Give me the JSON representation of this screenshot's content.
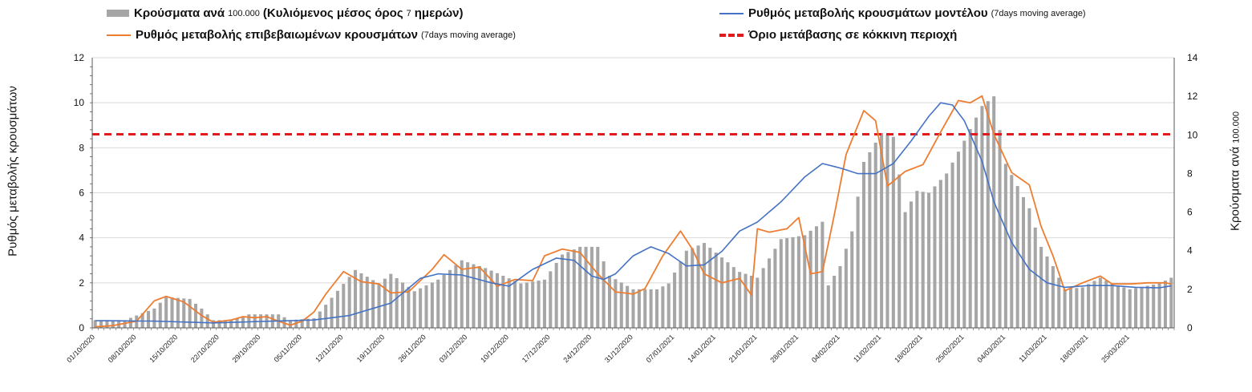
{
  "chart_data": {
    "type": "bar+line",
    "legend": {
      "bars": {
        "label": "Κρούσματα ανά",
        "note1": "100.000",
        "label2": "(Κυλιόμενος μέσος όρος",
        "note2": "7",
        "label3": "ημερών)"
      },
      "model": {
        "label": "Ρυθμός μεταβολής κρουσμάτων μοντέλου",
        "note": "(7days moving average)"
      },
      "confirmed": {
        "label": "Ρυθμός μεταβολής επιβεβαιωμένων κρουσμάτων",
        "note": "(7days moving average)"
      },
      "threshold": {
        "label": "Όριο μετάβασης σε κόκκινη περιοχή"
      }
    },
    "y_left": {
      "label": "Ρυθμός μεταβολής κρουσμάτων",
      "min": 0,
      "max": 12,
      "ticks": [
        0,
        2,
        4,
        6,
        8,
        10,
        12
      ]
    },
    "y_right": {
      "label": "Κρούσματα ανά",
      "label_note": "100.000",
      "min": 0,
      "max": 14,
      "ticks": [
        0,
        2,
        4,
        6,
        8,
        10,
        12,
        14
      ]
    },
    "x_tick_labels": [
      "01/10/2020",
      "08/10/2020",
      "15/10/2020",
      "22/10/2020",
      "29/10/2020",
      "05/11/2020",
      "12/11/2020",
      "19/11/2020",
      "26/11/2020",
      "03/12/2020",
      "10/12/2020",
      "17/12/2020",
      "24/12/2020",
      "31/12/2020",
      "07/01/2021",
      "14/01/2021",
      "21/01/2021",
      "28/01/2021",
      "04/02/2021",
      "11/02/2021",
      "18/02/2021",
      "25/02/2021",
      "04/03/2021",
      "11/03/2021",
      "18/03/2021",
      "25/03/2021"
    ],
    "n_days": 183,
    "threshold_value": 8.6,
    "colors": {
      "bars": "#a6a6a6",
      "model": "#4472c4",
      "confirmed": "#ed7d31",
      "threshold": "#e31a1c",
      "grid": "#d9d9d9"
    },
    "bars_keypoints": [
      [
        0,
        0.4
      ],
      [
        5,
        0.4
      ],
      [
        10,
        1.0
      ],
      [
        12,
        1.6
      ],
      [
        16,
        1.5
      ],
      [
        18,
        1.0
      ],
      [
        20,
        0.4
      ],
      [
        23,
        0.4
      ],
      [
        26,
        0.7
      ],
      [
        31,
        0.7
      ],
      [
        33,
        0.4
      ],
      [
        37,
        0.5
      ],
      [
        39,
        1.2
      ],
      [
        44,
        3.0
      ],
      [
        48,
        2.3
      ],
      [
        50,
        2.8
      ],
      [
        54,
        1.9
      ],
      [
        58,
        2.5
      ],
      [
        62,
        3.5
      ],
      [
        66,
        3.1
      ],
      [
        72,
        2.3
      ],
      [
        76,
        2.5
      ],
      [
        79,
        3.8
      ],
      [
        82,
        4.2
      ],
      [
        85,
        4.2
      ],
      [
        87,
        2.7
      ],
      [
        91,
        2.0
      ],
      [
        95,
        2.0
      ],
      [
        97,
        2.3
      ],
      [
        100,
        4.0
      ],
      [
        103,
        4.4
      ],
      [
        105,
        3.9
      ],
      [
        109,
        2.9
      ],
      [
        112,
        2.6
      ],
      [
        116,
        4.6
      ],
      [
        120,
        4.8
      ],
      [
        123,
        5.5
      ],
      [
        124,
        2.2
      ],
      [
        126,
        3.2
      ],
      [
        128,
        5.0
      ],
      [
        130,
        8.6
      ],
      [
        133,
        10.1
      ],
      [
        135,
        9.9
      ],
      [
        137,
        6.0
      ],
      [
        139,
        7.1
      ],
      [
        141,
        7.0
      ],
      [
        144,
        8.0
      ],
      [
        147,
        9.7
      ],
      [
        150,
        11.5
      ],
      [
        152,
        12.0
      ],
      [
        154,
        8.5
      ],
      [
        158,
        6.2
      ],
      [
        160,
        4.2
      ],
      [
        162,
        3.2
      ],
      [
        164,
        2.0
      ],
      [
        167,
        2.1
      ],
      [
        170,
        2.6
      ],
      [
        172,
        2.3
      ],
      [
        175,
        2.0
      ],
      [
        180,
        2.3
      ],
      [
        182,
        2.6
      ]
    ],
    "model_keypoints": [
      [
        0,
        0.32
      ],
      [
        10,
        0.3
      ],
      [
        20,
        0.22
      ],
      [
        30,
        0.3
      ],
      [
        37,
        0.35
      ],
      [
        43,
        0.55
      ],
      [
        50,
        1.1
      ],
      [
        55,
        2.2
      ],
      [
        58,
        2.4
      ],
      [
        62,
        2.35
      ],
      [
        67,
        2.0
      ],
      [
        70,
        1.85
      ],
      [
        74,
        2.6
      ],
      [
        78,
        3.1
      ],
      [
        81,
        3.0
      ],
      [
        84,
        2.3
      ],
      [
        86,
        2.15
      ],
      [
        88,
        2.4
      ],
      [
        91,
        3.2
      ],
      [
        94,
        3.6
      ],
      [
        97,
        3.3
      ],
      [
        100,
        2.75
      ],
      [
        103,
        2.8
      ],
      [
        106,
        3.4
      ],
      [
        109,
        4.3
      ],
      [
        112,
        4.7
      ],
      [
        116,
        5.6
      ],
      [
        120,
        6.7
      ],
      [
        123,
        7.3
      ],
      [
        126,
        7.1
      ],
      [
        129,
        6.85
      ],
      [
        132,
        6.85
      ],
      [
        135,
        7.3
      ],
      [
        138,
        8.3
      ],
      [
        141,
        9.4
      ],
      [
        143,
        10.0
      ],
      [
        145,
        9.9
      ],
      [
        147,
        9.2
      ],
      [
        150,
        7.4
      ],
      [
        152,
        5.6
      ],
      [
        155,
        3.8
      ],
      [
        158,
        2.6
      ],
      [
        161,
        2.0
      ],
      [
        164,
        1.8
      ],
      [
        168,
        1.88
      ],
      [
        172,
        1.88
      ],
      [
        176,
        1.8
      ],
      [
        180,
        1.78
      ],
      [
        184,
        1.95
      ],
      [
        188,
        2.35
      ],
      [
        192,
        2.7
      ],
      [
        196,
        3.05
      ],
      [
        200,
        3.45
      ],
      [
        204,
        3.95
      ],
      [
        208,
        4.45
      ],
      [
        212,
        4.75
      ]
    ],
    "confirmed_keypoints": [
      [
        0,
        0.05
      ],
      [
        3,
        0.1
      ],
      [
        7,
        0.3
      ],
      [
        10,
        1.2
      ],
      [
        12,
        1.4
      ],
      [
        15,
        1.15
      ],
      [
        18,
        0.55
      ],
      [
        20,
        0.25
      ],
      [
        23,
        0.35
      ],
      [
        25,
        0.5
      ],
      [
        27,
        0.45
      ],
      [
        29,
        0.5
      ],
      [
        31,
        0.3
      ],
      [
        33,
        0.12
      ],
      [
        35,
        0.3
      ],
      [
        37,
        0.7
      ],
      [
        39,
        1.5
      ],
      [
        42,
        2.5
      ],
      [
        45,
        2.05
      ],
      [
        48,
        1.95
      ],
      [
        50,
        1.55
      ],
      [
        53,
        1.6
      ],
      [
        57,
        2.6
      ],
      [
        59,
        3.25
      ],
      [
        62,
        2.6
      ],
      [
        65,
        2.7
      ],
      [
        68,
        1.85
      ],
      [
        71,
        2.15
      ],
      [
        74,
        2.1
      ],
      [
        76,
        3.2
      ],
      [
        79,
        3.5
      ],
      [
        82,
        3.35
      ],
      [
        85,
        2.4
      ],
      [
        88,
        1.6
      ],
      [
        91,
        1.5
      ],
      [
        93,
        1.75
      ],
      [
        96,
        3.2
      ],
      [
        99,
        4.3
      ],
      [
        101,
        3.5
      ],
      [
        103,
        2.4
      ],
      [
        106,
        2.0
      ],
      [
        109,
        2.2
      ],
      [
        111,
        1.45
      ],
      [
        112,
        4.4
      ],
      [
        114,
        4.25
      ],
      [
        117,
        4.4
      ],
      [
        119,
        4.9
      ],
      [
        121,
        2.4
      ],
      [
        123,
        2.5
      ],
      [
        125,
        5.0
      ],
      [
        127,
        7.7
      ],
      [
        130,
        9.65
      ],
      [
        132,
        9.2
      ],
      [
        134,
        6.3
      ],
      [
        137,
        6.95
      ],
      [
        140,
        7.25
      ],
      [
        143,
        8.7
      ],
      [
        146,
        10.1
      ],
      [
        148,
        10.0
      ],
      [
        150,
        10.3
      ],
      [
        152,
        8.6
      ],
      [
        155,
        6.9
      ],
      [
        158,
        6.35
      ],
      [
        160,
        4.5
      ],
      [
        162,
        3.2
      ],
      [
        164,
        1.65
      ],
      [
        167,
        2.0
      ],
      [
        170,
        2.3
      ],
      [
        172,
        1.95
      ],
      [
        175,
        1.95
      ],
      [
        178,
        2.0
      ],
      [
        181,
        2.0
      ],
      [
        184,
        1.85
      ],
      [
        188,
        2.45
      ],
      [
        192,
        2.5
      ],
      [
        195,
        3.15
      ]
    ]
  }
}
